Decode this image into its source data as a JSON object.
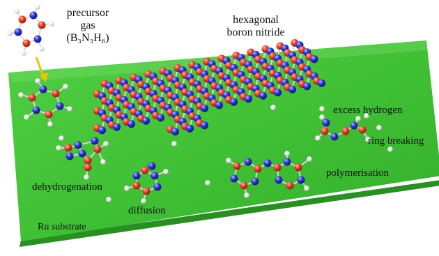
{
  "labels": {
    "precursor_line1": "precursor",
    "precursor_line2": "gas",
    "precursor_formula": "(B₃N₃H₆)",
    "hbn_line1": "hexagonal",
    "hbn_line2": "boron nitride",
    "excess_hydrogen": "excess hydrogen",
    "ring_breaking": "ring breaking",
    "polymerisation": "polymerisation",
    "dehydrogenation": "dehydrogenation",
    "diffusion": "diffusion",
    "substrate": "Ru substrate"
  },
  "colors": {
    "substrate_top": "#3fbf34",
    "substrate_edge": "#2a8f22",
    "boron": "#e8402a",
    "nitrogen": "#2b35d8",
    "hydrogen": "#f2f2f2",
    "bond": "#d8d8d8",
    "arrow": "#f2c200"
  },
  "atom_legend": {
    "red_sphere": "boron",
    "blue_sphere": "nitrogen",
    "white_sphere": "hydrogen"
  }
}
